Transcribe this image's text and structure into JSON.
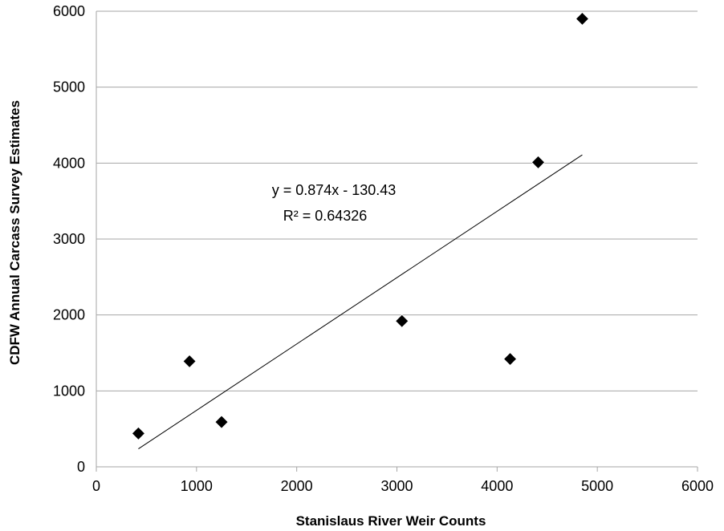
{
  "chart_data": {
    "type": "scatter",
    "title": "",
    "xlabel": "Stanislaus River Weir Counts",
    "ylabel": "CDFW Annual Carcass Survey Estimates",
    "xlim": [
      0,
      6000
    ],
    "ylim": [
      0,
      6000
    ],
    "xticks": [
      "0",
      "1000",
      "2000",
      "3000",
      "4000",
      "5000",
      "6000"
    ],
    "yticks": [
      "0",
      "1000",
      "2000",
      "3000",
      "4000",
      "5000",
      "6000"
    ],
    "grid": "horizontal",
    "legend": "none",
    "marker": "diamond",
    "marker_color": "#000000",
    "points": [
      {
        "x": 420,
        "y": 440
      },
      {
        "x": 930,
        "y": 1390
      },
      {
        "x": 1250,
        "y": 590
      },
      {
        "x": 3050,
        "y": 1920
      },
      {
        "x": 4130,
        "y": 1420
      },
      {
        "x": 4410,
        "y": 4010
      },
      {
        "x": 4850,
        "y": 5900
      }
    ],
    "trendline": {
      "slope": 0.874,
      "intercept": -130.43,
      "x_start": 420,
      "x_end": 4850,
      "equation": "y = 0.874x - 130.43",
      "r_squared": "R² = 0.64326"
    }
  }
}
